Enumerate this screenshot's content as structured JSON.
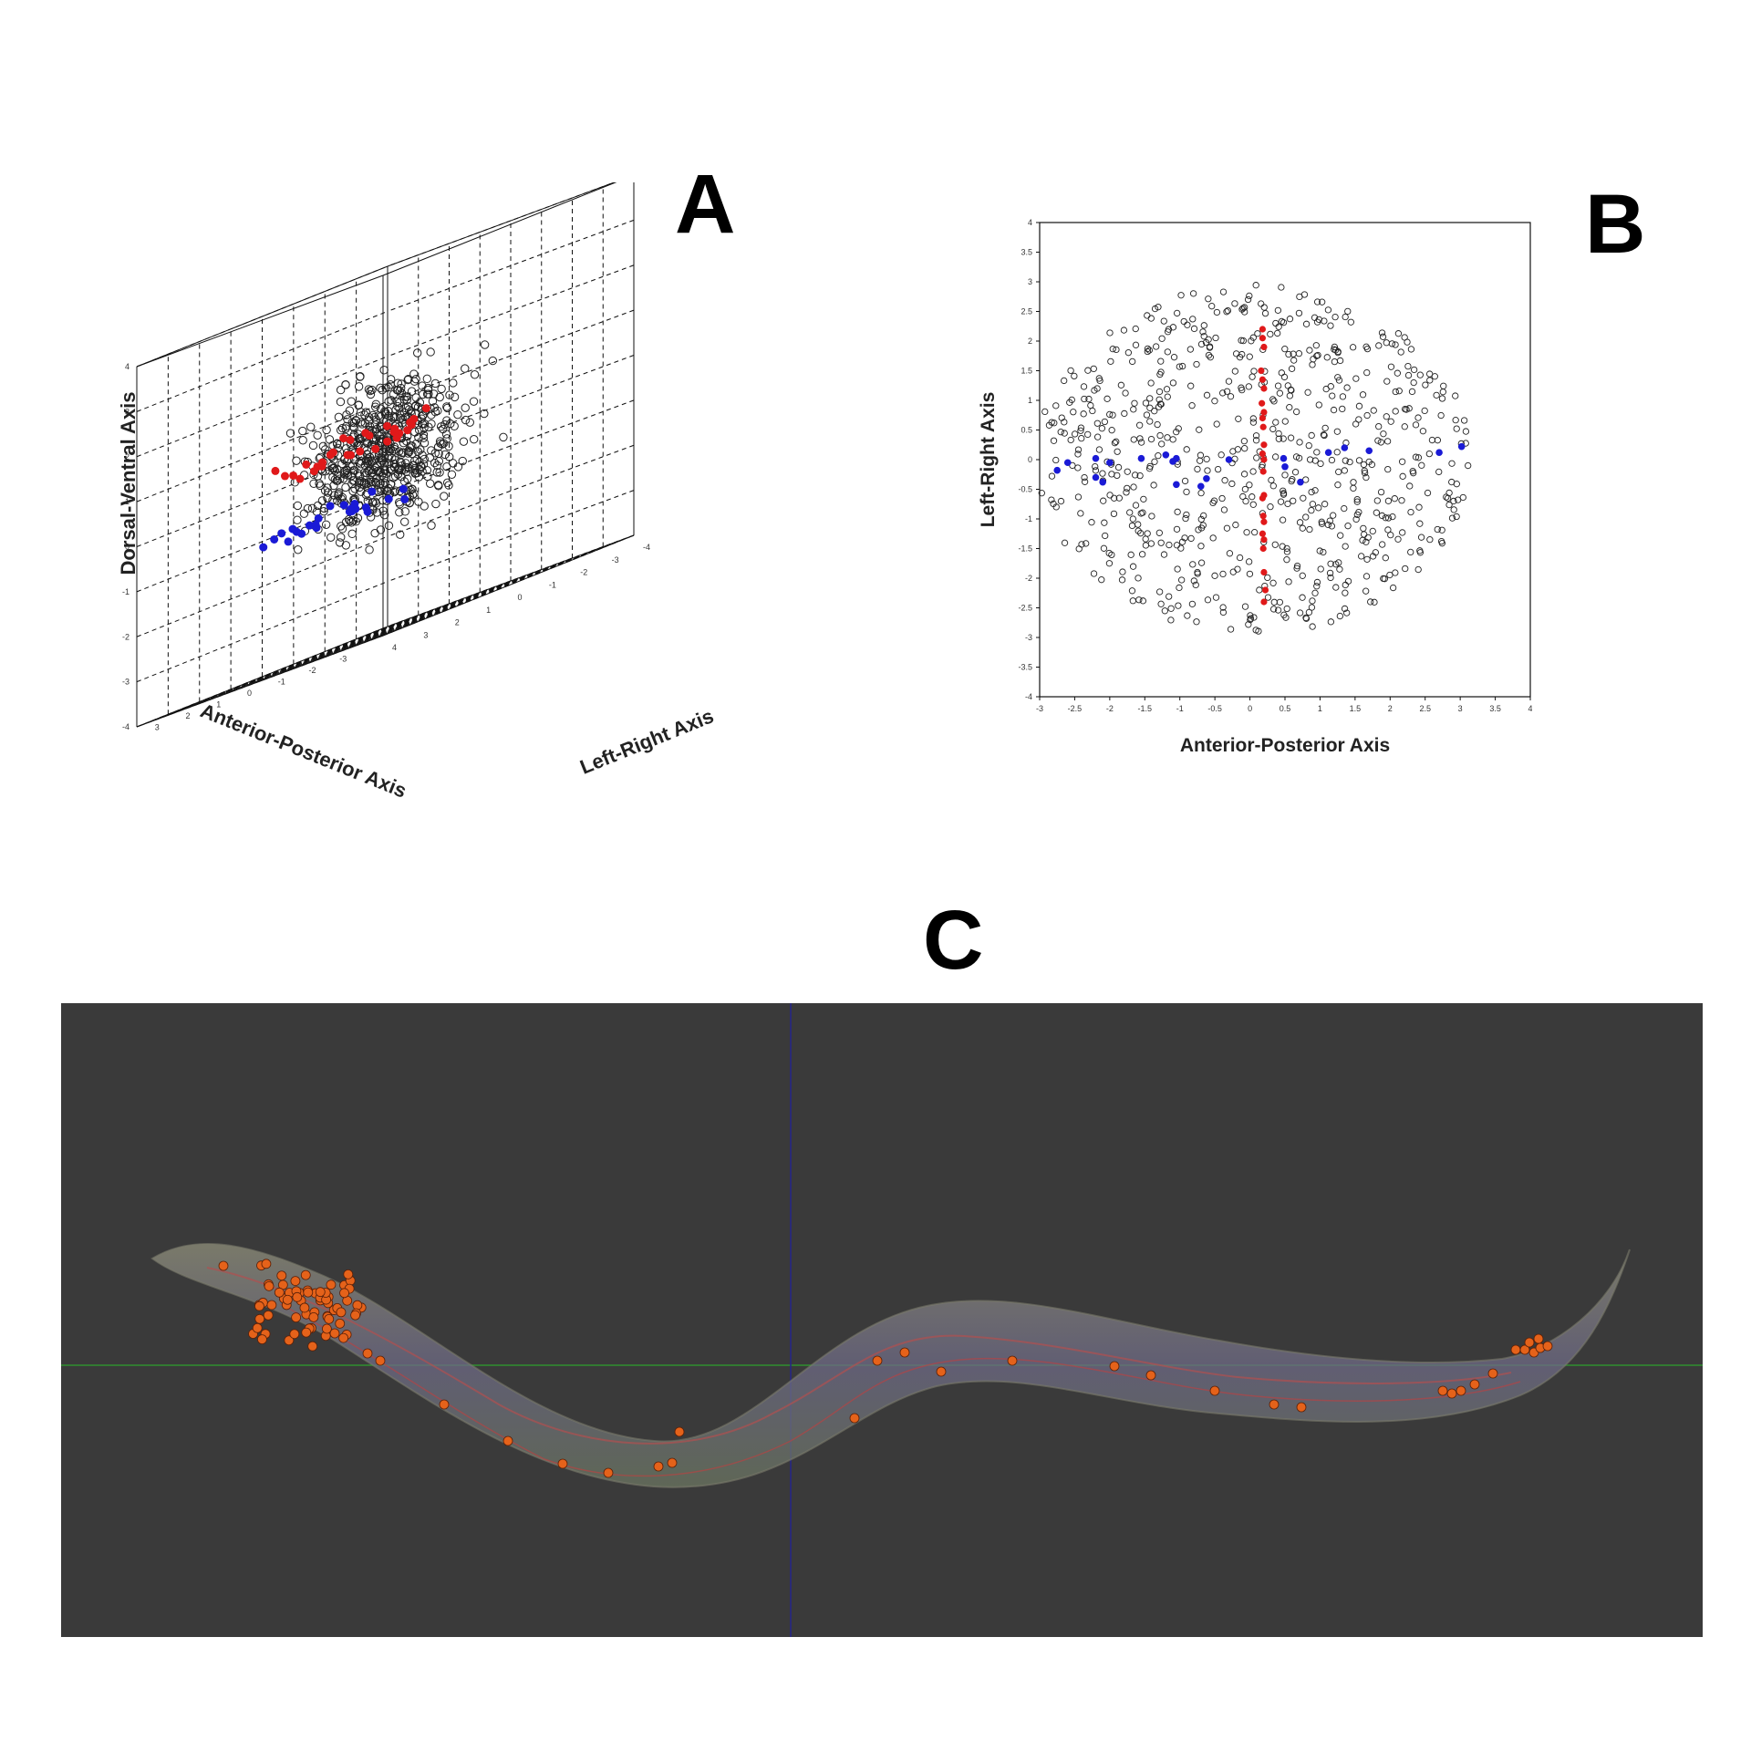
{
  "panels": {
    "a": "A",
    "b": "B",
    "c": "C"
  },
  "chart_data": [
    {
      "panel": "A",
      "type": "scatter",
      "axes": {
        "dv_label": "Dorsal-Ventral Axis",
        "ap_label": "Anterior-Posterior Axis",
        "lr_label": "Left-Right Axis",
        "dv_ticks": [
          "4",
          "3",
          "2",
          "1",
          "0",
          "-1",
          "-2",
          "-3",
          "-4"
        ],
        "ap_ticks": [
          "3",
          "2",
          "1",
          "0",
          "-1",
          "-2",
          "-3"
        ],
        "lr_ticks": [
          "-4",
          "-3",
          "-2",
          "-1",
          "0",
          "1",
          "2",
          "3",
          "4"
        ],
        "range": [
          -4,
          4
        ]
      },
      "marker_styles": {
        "open": "#222222",
        "red": "#e0191a",
        "blue": "#1a1ad6"
      },
      "grid": "dashed",
      "series": [
        {
          "style": "open",
          "count": 620
        },
        {
          "style": "red",
          "count": 30
        },
        {
          "style": "blue",
          "count": 24
        }
      ]
    },
    {
      "panel": "B",
      "type": "scatter",
      "xlabel": "Anterior-Posterior Axis",
      "ylabel": "Left-Right Axis",
      "xlim": [
        -3,
        4
      ],
      "ylim": [
        -4,
        4
      ],
      "xticks": [
        "-3",
        "-2.5",
        "-2",
        "-1.5",
        "-1",
        "-0.5",
        "0",
        "0.5",
        "1",
        "1.5",
        "2",
        "2.5",
        "3",
        "3.5",
        "4"
      ],
      "yticks": [
        "4",
        "3.5",
        "3",
        "2.5",
        "2",
        "1.5",
        "1",
        "0.5",
        "0",
        "-0.5",
        "-1",
        "-1.5",
        "-2",
        "-2.5",
        "-3",
        "-3.5",
        "-4"
      ],
      "marker_styles": {
        "open": "#222222",
        "red": "#e0191a",
        "blue": "#1a1ad6"
      },
      "red_points": [
        [
          0.18,
          2.2
        ],
        [
          0.18,
          2.05
        ],
        [
          0.2,
          1.9
        ],
        [
          0.16,
          1.5
        ],
        [
          0.18,
          1.35
        ],
        [
          0.2,
          1.2
        ],
        [
          0.17,
          0.95
        ],
        [
          0.2,
          0.8
        ],
        [
          0.18,
          0.7
        ],
        [
          0.19,
          0.55
        ],
        [
          0.2,
          0.25
        ],
        [
          0.18,
          0.1
        ],
        [
          0.2,
          0.0
        ],
        [
          0.19,
          -0.2
        ],
        [
          0.2,
          -0.6
        ],
        [
          0.18,
          -0.65
        ],
        [
          0.19,
          -0.95
        ],
        [
          0.2,
          -1.05
        ],
        [
          0.18,
          -1.25
        ],
        [
          0.2,
          -1.35
        ],
        [
          0.19,
          -1.5
        ],
        [
          0.2,
          -1.9
        ],
        [
          0.22,
          -2.2
        ],
        [
          0.2,
          -2.4
        ]
      ],
      "blue_points": [
        [
          -2.75,
          -0.18
        ],
        [
          -2.6,
          -0.05
        ],
        [
          -2.2,
          0.02
        ],
        [
          -2.0,
          -0.05
        ],
        [
          -2.2,
          -0.3
        ],
        [
          -2.1,
          -0.38
        ],
        [
          -1.55,
          0.02
        ],
        [
          -1.2,
          0.08
        ],
        [
          -1.05,
          0.02
        ],
        [
          -1.1,
          -0.03
        ],
        [
          -1.05,
          -0.42
        ],
        [
          -0.7,
          -0.45
        ],
        [
          -0.62,
          -0.32
        ],
        [
          -0.3,
          0.0
        ],
        [
          0.48,
          0.02
        ],
        [
          0.5,
          -0.12
        ],
        [
          0.72,
          -0.38
        ],
        [
          1.12,
          0.12
        ],
        [
          1.35,
          0.2
        ],
        [
          1.7,
          0.15
        ],
        [
          2.7,
          0.12
        ],
        [
          3.02,
          0.22
        ]
      ],
      "open_count": 700
    },
    {
      "panel": "C",
      "type": "image",
      "background": "#3a3a3a",
      "marker_color": "#e5621a"
    }
  ]
}
